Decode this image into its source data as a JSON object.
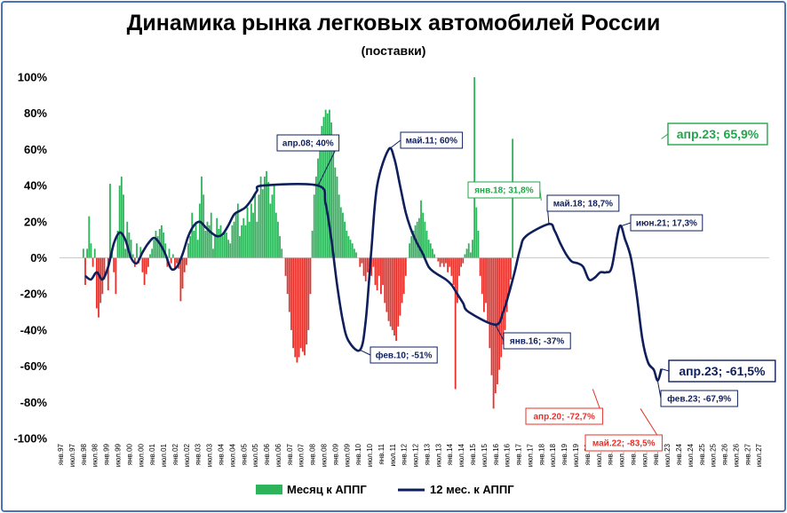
{
  "chart_data": {
    "type": "bar",
    "title": "Динамика рынка легковых автомобилей России",
    "subtitle": "(поставки)",
    "xlabel": "",
    "ylabel": "",
    "ylim": [
      -100,
      100
    ],
    "y_ticks": [
      "-100%",
      "-80%",
      "-60%",
      "-40%",
      "-20%",
      "0%",
      "20%",
      "40%",
      "60%",
      "80%",
      "100%"
    ],
    "x_ticks": [
      "янв.97",
      "июл.97",
      "янв.98",
      "июл.98",
      "янв.99",
      "июл.99",
      "янв.00",
      "июл.00",
      "янв.01",
      "июл.01",
      "янв.02",
      "июл.02",
      "янв.03",
      "июл.03",
      "янв.04",
      "июл.04",
      "янв.05",
      "июл.05",
      "янв.06",
      "июл.06",
      "янв.07",
      "июл.07",
      "янв.08",
      "июл.08",
      "янв.09",
      "июл.09",
      "янв.10",
      "июл.10",
      "янв.11",
      "июл.11",
      "янв.12",
      "июл.12",
      "янв.13",
      "июл.13",
      "янв.14",
      "июл.14",
      "янв.15",
      "июл.15",
      "янв.16",
      "июл.16",
      "янв.17",
      "июл.17",
      "янв.18",
      "июл.18",
      "янв.19",
      "июл.19",
      "янв.20",
      "июл.20",
      "янв.21",
      "июл.21",
      "янв.22",
      "июл.22",
      "янв.23",
      "июл.23",
      "янв.24",
      "июл.24",
      "янв.25",
      "июл.25",
      "янв.26",
      "июл.26",
      "янв.27",
      "июл.27"
    ],
    "legend_position": "bottom",
    "grid": false,
    "colors": {
      "bar_positive": "#2db35a",
      "bar_negative": "#e8302a",
      "line": "#0f1f5c",
      "ann_green": "#23a64b",
      "ann_red": "#e8302a",
      "ann_navy": "#0f1f5c"
    },
    "series": [
      {
        "name": "Месяц к АППГ",
        "type": "bar",
        "start": "янв.97",
        "frequency": "monthly",
        "values": [
          0,
          0,
          0,
          0,
          0,
          0,
          0,
          0,
          0,
          0,
          0,
          0,
          5,
          -15,
          5,
          23,
          8,
          -5,
          5,
          -28,
          -33,
          -25,
          -20,
          -12,
          0,
          -18,
          41,
          5,
          -8,
          -20,
          15,
          40,
          45,
          35,
          5,
          20,
          14,
          10,
          2,
          -5,
          8,
          -3,
          6,
          -8,
          -15,
          -9,
          -5,
          2,
          5,
          10,
          15,
          12,
          16,
          18,
          14,
          8,
          -5,
          5,
          -3,
          2,
          -6,
          -3,
          -6,
          -24,
          -17,
          -8,
          -4,
          8,
          12,
          25,
          15,
          20,
          10,
          30,
          45,
          35,
          15,
          20,
          18,
          25,
          5,
          12,
          22,
          16,
          18,
          12,
          15,
          14,
          10,
          8,
          18,
          20,
          25,
          30,
          12,
          18,
          22,
          18,
          28,
          20,
          30,
          25,
          35,
          20,
          35,
          45,
          38,
          45,
          48,
          42,
          30,
          35,
          40,
          25,
          20,
          12,
          5,
          0,
          -10,
          -20,
          -30,
          -40,
          -50,
          -55,
          -58,
          -55,
          -50,
          -52,
          -54,
          -48,
          -40,
          -20,
          15,
          35,
          45,
          55,
          65,
          73,
          78,
          82,
          80,
          82,
          75,
          60,
          50,
          45,
          35,
          28,
          25,
          20,
          15,
          12,
          10,
          8,
          5,
          3,
          0,
          -5,
          -3,
          -10,
          -13,
          -8,
          -5,
          -10,
          -5,
          -15,
          -18,
          -10,
          -20,
          -15,
          -25,
          -30,
          -35,
          -38,
          -40,
          -43,
          -46,
          -38,
          -32,
          -25,
          -20,
          -10,
          0,
          8,
          12,
          15,
          18,
          20,
          22,
          31.8,
          25,
          20,
          15,
          10,
          8,
          5,
          2,
          0,
          -2,
          -5,
          -3,
          -5,
          -3,
          -8,
          -5,
          -10,
          -15,
          -72.7,
          -25,
          -10,
          -5,
          -3,
          2,
          5,
          8,
          3,
          10,
          100,
          28,
          15,
          -10,
          -20,
          -30,
          -25,
          -35,
          -50,
          -65,
          -83.5,
          -75,
          -70,
          -62,
          -55,
          -48,
          -40,
          -30,
          -20,
          -12,
          65.9
        ]
      },
      {
        "name": "12 мес. к АППГ",
        "type": "line",
        "points": [
          {
            "x": "фев.98",
            "y": -10
          },
          {
            "x": "май.98",
            "y": -12
          },
          {
            "x": "авг.98",
            "y": -8
          },
          {
            "x": "ноя.98",
            "y": -12
          },
          {
            "x": "фев.99",
            "y": -5
          },
          {
            "x": "май.99",
            "y": 8
          },
          {
            "x": "авг.99",
            "y": 14
          },
          {
            "x": "ноя.99",
            "y": 10
          },
          {
            "x": "фев.00",
            "y": 0
          },
          {
            "x": "май.00",
            "y": -3
          },
          {
            "x": "авг.00",
            "y": 3
          },
          {
            "x": "ноя.00",
            "y": 8
          },
          {
            "x": "фев.01",
            "y": 11
          },
          {
            "x": "май.01",
            "y": 8
          },
          {
            "x": "авг.01",
            "y": 2
          },
          {
            "x": "ноя.01",
            "y": -6
          },
          {
            "x": "фев.02",
            "y": -5
          },
          {
            "x": "май.02",
            "y": 2
          },
          {
            "x": "авг.02",
            "y": 12
          },
          {
            "x": "ноя.02",
            "y": 18
          },
          {
            "x": "фев.03",
            "y": 20
          },
          {
            "x": "май.03",
            "y": 17
          },
          {
            "x": "авг.03",
            "y": 14
          },
          {
            "x": "ноя.03",
            "y": 12
          },
          {
            "x": "фев.04",
            "y": 13
          },
          {
            "x": "май.04",
            "y": 18
          },
          {
            "x": "авг.04",
            "y": 24
          },
          {
            "x": "ноя.04",
            "y": 26
          },
          {
            "x": "фев.05",
            "y": 28
          },
          {
            "x": "май.05",
            "y": 32
          },
          {
            "x": "авг.05",
            "y": 37
          },
          {
            "x": "ноя.05",
            "y": 40
          },
          {
            "x": "апр.08",
            "y": 40
          },
          {
            "x": "авг.08",
            "y": 30
          },
          {
            "x": "ноя.08",
            "y": 10
          },
          {
            "x": "фев.09",
            "y": -15
          },
          {
            "x": "май.09",
            "y": -35
          },
          {
            "x": "авг.09",
            "y": -46
          },
          {
            "x": "фев.10",
            "y": -51
          },
          {
            "x": "май.10",
            "y": -35
          },
          {
            "x": "авг.10",
            "y": 5
          },
          {
            "x": "ноя.10",
            "y": 40
          },
          {
            "x": "май.11",
            "y": 60
          },
          {
            "x": "авг.11",
            "y": 55
          },
          {
            "x": "ноя.11",
            "y": 40
          },
          {
            "x": "фев.12",
            "y": 25
          },
          {
            "x": "май.12",
            "y": 15
          },
          {
            "x": "авг.12",
            "y": 8
          },
          {
            "x": "ноя.12",
            "y": 2
          },
          {
            "x": "фев.13",
            "y": -5
          },
          {
            "x": "май.13",
            "y": -8
          },
          {
            "x": "авг.13",
            "y": -10
          },
          {
            "x": "ноя.13",
            "y": -12
          },
          {
            "x": "фев.14",
            "y": -15
          },
          {
            "x": "май.14",
            "y": -20
          },
          {
            "x": "авг.14",
            "y": -25
          },
          {
            "x": "ноя.14",
            "y": -30
          },
          {
            "x": "янв.16",
            "y": -37
          },
          {
            "x": "май.16",
            "y": -30
          },
          {
            "x": "авг.16",
            "y": -20
          },
          {
            "x": "ноя.16",
            "y": -8
          },
          {
            "x": "фев.17",
            "y": 5
          },
          {
            "x": "май.17",
            "y": 12
          },
          {
            "x": "май.18",
            "y": 18.7
          },
          {
            "x": "авг.18",
            "y": 15
          },
          {
            "x": "ноя.18",
            "y": 8
          },
          {
            "x": "фев.19",
            "y": 2
          },
          {
            "x": "май.19",
            "y": -2
          },
          {
            "x": "авг.19",
            "y": -3
          },
          {
            "x": "ноя.19",
            "y": -5
          },
          {
            "x": "фев.20",
            "y": -12
          },
          {
            "x": "май.20",
            "y": -11
          },
          {
            "x": "авг.20",
            "y": -8
          },
          {
            "x": "ноя.20",
            "y": -8
          },
          {
            "x": "фев.21",
            "y": -5
          },
          {
            "x": "июн.21",
            "y": 17.3
          },
          {
            "x": "сен.21",
            "y": 10
          },
          {
            "x": "дек.21",
            "y": 0
          },
          {
            "x": "мар.22",
            "y": -20
          },
          {
            "x": "июн.22",
            "y": -45
          },
          {
            "x": "сен.22",
            "y": -58
          },
          {
            "x": "дек.22",
            "y": -62
          },
          {
            "x": "фев.23",
            "y": -67.9
          },
          {
            "x": "апр.23",
            "y": -61.5
          }
        ]
      }
    ],
    "annotations": [
      {
        "text": "апр.08; 40%",
        "x": "апр.08",
        "y": 40,
        "color": "navy",
        "size": "small"
      },
      {
        "text": "май.11; 60%",
        "x": "май.11",
        "y": 60,
        "color": "navy",
        "size": "small"
      },
      {
        "text": "янв.18; 31,8%",
        "x": "янв.18",
        "y": 31.8,
        "color": "green",
        "size": "small"
      },
      {
        "text": "май.18; 18,7%",
        "x": "май.18",
        "y": 18.7,
        "color": "navy",
        "size": "small"
      },
      {
        "text": "июн.21; 17,3%",
        "x": "июн.21",
        "y": 17.3,
        "color": "navy",
        "size": "small"
      },
      {
        "text": "апр.23; 65,9%",
        "x": "апр.23",
        "y": 65.9,
        "color": "green",
        "size": "big"
      },
      {
        "text": "фев.10; -51%",
        "x": "фев.10",
        "y": -51,
        "color": "navy",
        "size": "small"
      },
      {
        "text": "янв.16; -37%",
        "x": "янв.16",
        "y": -37,
        "color": "navy",
        "size": "small"
      },
      {
        "text": "апр.20; -72,7%",
        "x": "апр.20",
        "y": -72.7,
        "color": "red",
        "size": "small"
      },
      {
        "text": "май.22; -83,5%",
        "x": "май.22",
        "y": -83.5,
        "color": "red",
        "size": "small"
      },
      {
        "text": "апр.23; -61,5%",
        "x": "апр.23",
        "y": -61.5,
        "color": "navy",
        "size": "big"
      },
      {
        "text": "фев.23; -67,9%",
        "x": "фев.23",
        "y": -67.9,
        "color": "navy",
        "size": "small"
      }
    ]
  }
}
